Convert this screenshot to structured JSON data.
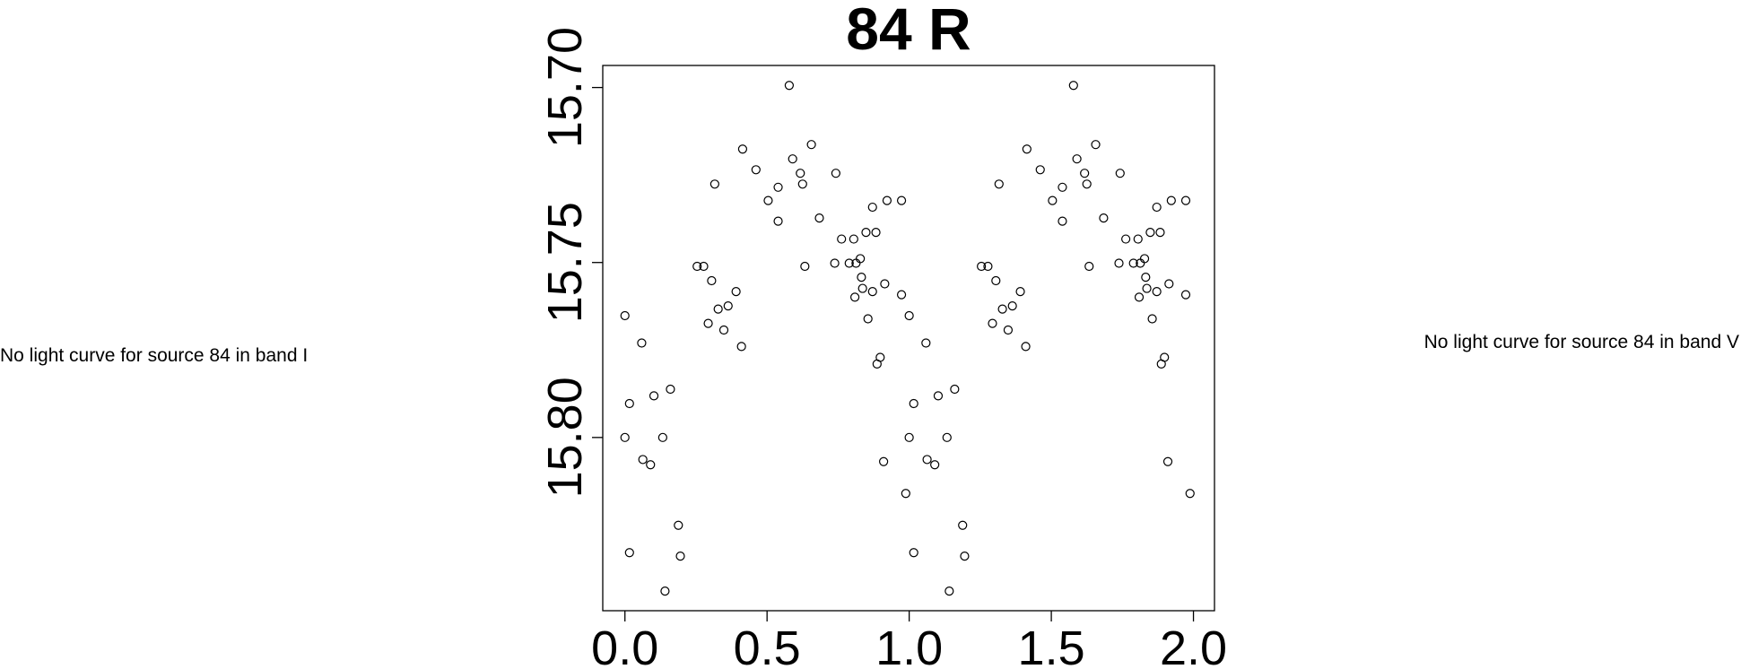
{
  "chart_data": {
    "type": "scatter",
    "title": "84 R",
    "annotations": [
      "No light curve for source 84 in band I",
      "No light curve for source 84 in band V"
    ],
    "x": [
      0.0,
      0.016,
      0.0,
      0.016,
      0.059,
      0.063,
      0.09,
      0.102,
      0.133,
      0.141,
      0.16,
      0.188,
      0.195,
      0.254,
      0.277,
      0.293,
      0.305,
      0.316,
      0.328,
      0.348,
      0.363,
      0.391,
      0.41,
      0.414,
      0.461,
      0.504,
      0.539,
      0.539,
      0.578,
      0.59,
      0.617,
      0.625,
      0.633,
      0.656,
      0.684,
      0.738,
      0.742,
      0.762,
      0.789,
      0.805,
      0.809,
      0.813,
      0.828,
      0.832,
      0.836,
      0.848,
      0.855,
      0.871,
      0.871,
      0.883,
      0.887,
      0.898,
      0.91,
      0.914,
      0.922,
      0.973,
      0.973,
      0.988,
      1.0,
      1.016,
      1.0,
      1.016,
      1.059,
      1.063,
      1.09,
      1.102,
      1.133,
      1.141,
      1.16,
      1.188,
      1.195,
      1.254,
      1.277,
      1.293,
      1.305,
      1.316,
      1.328,
      1.348,
      1.363,
      1.391,
      1.41,
      1.414,
      1.461,
      1.504,
      1.539,
      1.539,
      1.578,
      1.59,
      1.617,
      1.625,
      1.633,
      1.656,
      1.684,
      1.738,
      1.742,
      1.762,
      1.789,
      1.805,
      1.809,
      1.813,
      1.828,
      1.832,
      1.836,
      1.848,
      1.855,
      1.871,
      1.871,
      1.883,
      1.887,
      1.898,
      1.91,
      1.914,
      1.922,
      1.973,
      1.973,
      1.988
    ],
    "values": [
      15.7652,
      15.7903,
      15.8,
      15.8329,
      15.773,
      15.8063,
      15.8078,
      15.7881,
      15.8,
      15.8439,
      15.7862,
      15.8251,
      15.8339,
      15.7511,
      15.7511,
      15.7674,
      15.7552,
      15.7276,
      15.7633,
      15.7693,
      15.7624,
      15.7583,
      15.774,
      15.7176,
      15.7235,
      15.7323,
      15.7285,
      15.7382,
      15.6994,
      15.7204,
      15.7245,
      15.7276,
      15.7511,
      15.7163,
      15.7373,
      15.7502,
      15.7245,
      15.7433,
      15.7502,
      15.7433,
      15.7599,
      15.7502,
      15.7489,
      15.7542,
      15.7574,
      15.7414,
      15.7661,
      15.7342,
      15.7583,
      15.7414,
      15.779,
      15.7771,
      15.8069,
      15.7561,
      15.7323,
      15.7323,
      15.7592,
      15.816,
      15.7652,
      15.7903,
      15.8,
      15.8329,
      15.773,
      15.8063,
      15.8078,
      15.7881,
      15.8,
      15.8439,
      15.7862,
      15.8251,
      15.8339,
      15.7511,
      15.7511,
      15.7674,
      15.7552,
      15.7276,
      15.7633,
      15.7693,
      15.7624,
      15.7583,
      15.774,
      15.7176,
      15.7235,
      15.7323,
      15.7285,
      15.7382,
      15.6994,
      15.7204,
      15.7245,
      15.7276,
      15.7511,
      15.7163,
      15.7373,
      15.7502,
      15.7245,
      15.7433,
      15.7502,
      15.7433,
      15.7599,
      15.7502,
      15.7489,
      15.7542,
      15.7574,
      15.7414,
      15.7661,
      15.7342,
      15.7583,
      15.7414,
      15.779,
      15.7771,
      15.8069,
      15.7561,
      15.7323,
      15.7323,
      15.7592,
      15.816
    ],
    "xlim": [
      -0.078,
      2.074
    ],
    "ylim": [
      15.8495,
      15.6937
    ],
    "xticks": [
      {
        "value": 0,
        "label": "0.0"
      },
      {
        "value": 0.5,
        "label": "0.5"
      },
      {
        "value": 1,
        "label": "1.0"
      },
      {
        "value": 1.5,
        "label": "1.5"
      },
      {
        "value": 2,
        "label": "2.0"
      }
    ],
    "yticks": [
      {
        "value": 15.7,
        "label": "15.70"
      },
      {
        "value": 15.75,
        "label": "15.75"
      },
      {
        "value": 15.8,
        "label": "15.80"
      }
    ],
    "color": "#000000"
  }
}
